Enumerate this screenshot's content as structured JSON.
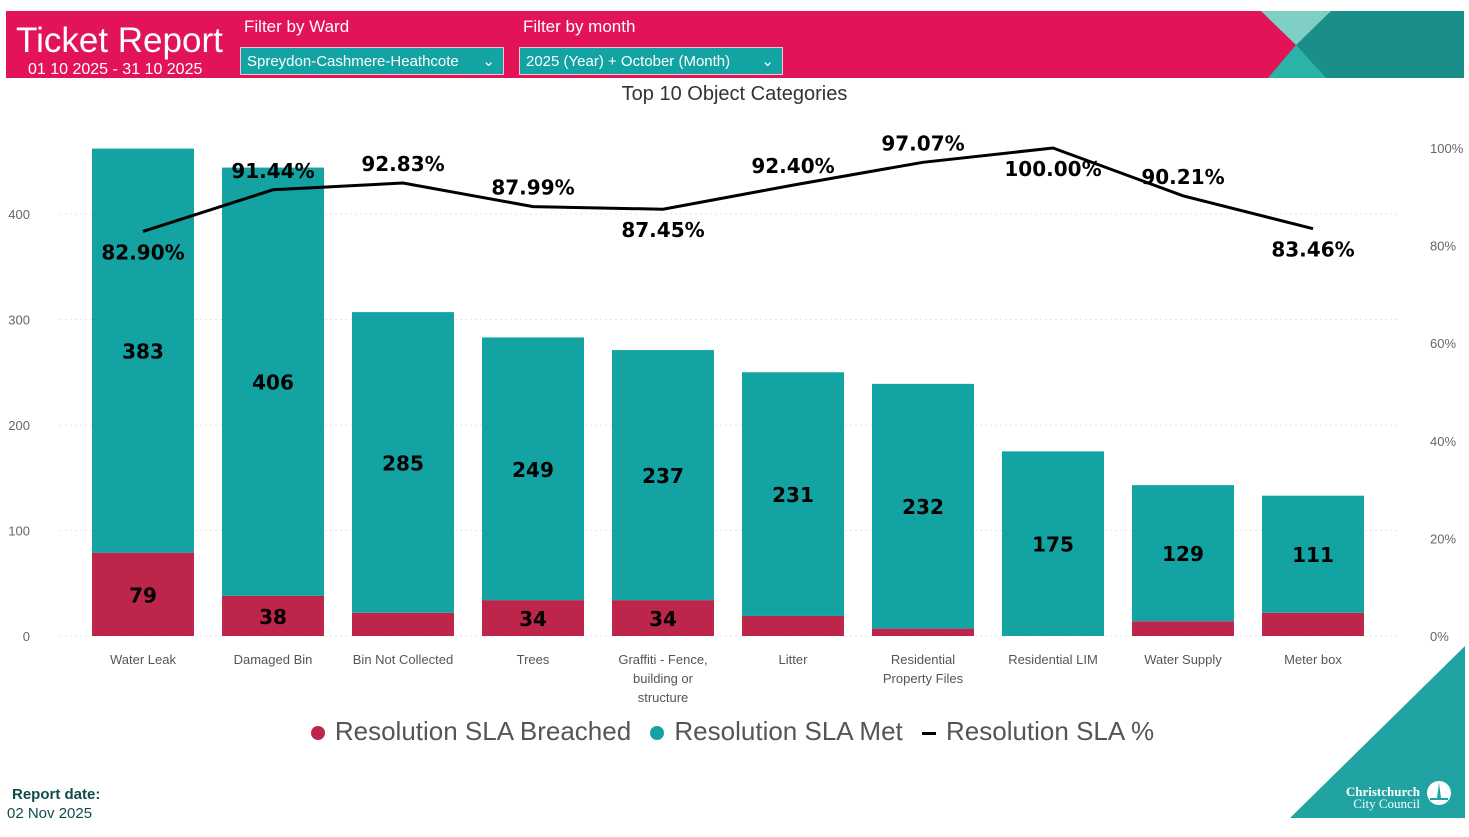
{
  "header": {
    "title": "Ticket Report",
    "date_range": "01 10 2025 - 31 10 2025",
    "ward_filter": {
      "label": "Filter by Ward",
      "value": "Spreydon-Cashmere-Heathcote"
    },
    "month_filter": {
      "label": "Filter by month",
      "value": "2025 (Year) + October (Month)"
    }
  },
  "colors": {
    "header": "#E31357",
    "breached": "#BE254A",
    "met": "#13A3A3",
    "line": "#000000"
  },
  "chart_data": {
    "type": "bar",
    "stacked": true,
    "title": "Top 10 Object Categories",
    "categories": [
      "Water Leak",
      "Damaged Bin",
      "Bin Not Collected",
      "Trees",
      "Graffiti - Fence, building or structure",
      "Litter",
      "Residential Property Files",
      "Residential LIM",
      "Water Supply",
      "Meter box"
    ],
    "series": [
      {
        "name": "Resolution SLA Breached",
        "values": [
          79,
          38,
          22,
          34,
          34,
          19,
          7,
          0,
          14,
          22
        ]
      },
      {
        "name": "Resolution SLA Met",
        "values": [
          383,
          406,
          285,
          249,
          237,
          231,
          232,
          175,
          129,
          111
        ]
      },
      {
        "name": "Resolution SLA %",
        "type": "line",
        "axis": "right",
        "values": [
          82.9,
          91.44,
          92.83,
          87.99,
          87.45,
          92.4,
          97.07,
          100.0,
          90.21,
          83.46
        ],
        "labels": [
          "82.90%",
          "91.44%",
          "92.83%",
          "87.99%",
          "87.45%",
          "92.40%",
          "97.07%",
          "100.00%",
          "90.21%",
          "83.46%"
        ]
      }
    ],
    "ylim": [
      0,
      460
    ],
    "y_ticks": [
      "0",
      "100",
      "200",
      "300",
      "400"
    ],
    "y2lim": [
      0,
      100
    ],
    "y2_ticks": [
      "0%",
      "20%",
      "40%",
      "60%",
      "80%",
      "100%"
    ],
    "grid": true,
    "legend": "bottom",
    "legend_labels": [
      "Resolution SLA Breached",
      "Resolution SLA Met",
      "Resolution SLA %"
    ]
  },
  "footer": {
    "report_date_label": "Report date:",
    "report_date": "02 Nov 2025",
    "logo_line1": "Christchurch",
    "logo_line2": "City Council"
  }
}
